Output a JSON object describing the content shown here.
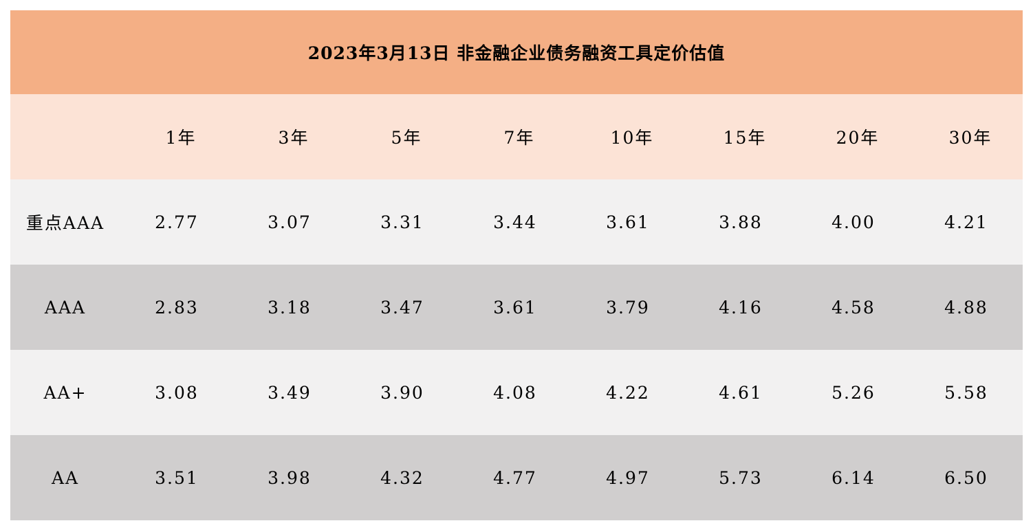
{
  "chart_data": {
    "type": "table",
    "title": "2023年3月13日  非金融企业债务融资工具定价估值",
    "columns": [
      "",
      "1年",
      "3年",
      "5年",
      "7年",
      "10年",
      "15年",
      "20年",
      "30年"
    ],
    "rows": [
      {
        "label": "重点AAA",
        "values": [
          "2.77",
          "3.07",
          "3.31",
          "3.44",
          "3.61",
          "3.88",
          "4.00",
          "4.21"
        ]
      },
      {
        "label": "AAA",
        "values": [
          "2.83",
          "3.18",
          "3.47",
          "3.61",
          "3.79",
          "4.16",
          "4.58",
          "4.88"
        ]
      },
      {
        "label": "AA+",
        "values": [
          "3.08",
          "3.49",
          "3.90",
          "4.08",
          "4.22",
          "4.61",
          "5.26",
          "5.58"
        ]
      },
      {
        "label": "AA",
        "values": [
          "3.51",
          "3.98",
          "4.32",
          "4.77",
          "4.97",
          "5.73",
          "6.14",
          "6.50"
        ]
      }
    ]
  },
  "colors": {
    "title_bg": "#F4AF85",
    "header_bg": "#FCE3D6",
    "row_light": "#F2F1F1",
    "row_dark": "#D0CECE"
  }
}
